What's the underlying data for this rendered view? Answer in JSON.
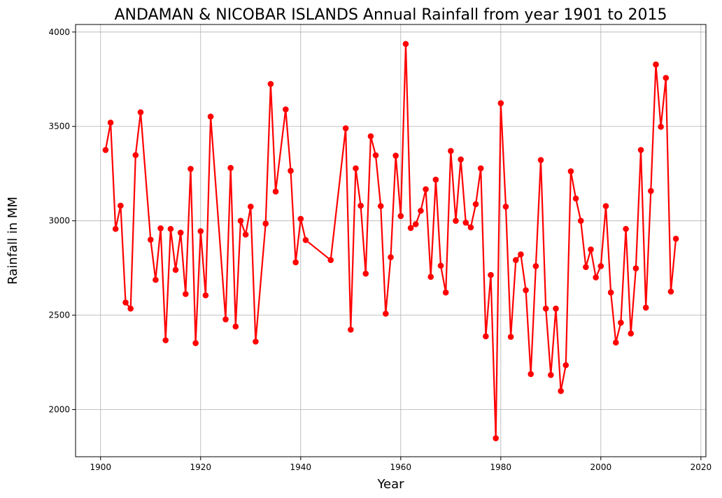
{
  "chart_data": {
    "type": "line",
    "title": "ANDAMAN & NICOBAR ISLANDS Annual Rainfall from year 1901 to 2015",
    "xlabel": "Year",
    "ylabel": "Rainfall in MM",
    "xlim": [
      1895,
      2021
    ],
    "ylim": [
      1750,
      4040
    ],
    "xticks": [
      "1900",
      "1920",
      "1940",
      "1960",
      "1980",
      "2000",
      "2020"
    ],
    "yticks": [
      "2000",
      "2500",
      "3000",
      "3500",
      "4000"
    ],
    "grid": true,
    "line_color": "#ff0000",
    "series": [
      {
        "x": [
          1901,
          1902,
          1903,
          1904,
          1905,
          1906,
          1907,
          1908,
          1910,
          1911,
          1912,
          1913,
          1914,
          1915,
          1916,
          1917,
          1918,
          1919,
          1920,
          1921,
          1922,
          1925,
          1926,
          1927,
          1928,
          1929,
          1930,
          1931,
          1933,
          1934,
          1935,
          1937,
          1938,
          1939,
          1940,
          1941,
          1946,
          1949,
          1950,
          1951,
          1952,
          1953,
          1954,
          1955,
          1956,
          1957,
          1958,
          1959,
          1960,
          1961,
          1962,
          1963,
          1964,
          1965,
          1966,
          1967,
          1968,
          1969,
          1970,
          1971,
          1972,
          1973,
          1974,
          1975,
          1976,
          1977,
          1978,
          1979,
          1980,
          1981,
          1982,
          1983,
          1984,
          1985,
          1986,
          1987,
          1988,
          1989,
          1990,
          1991,
          1992,
          1993,
          1994,
          1995,
          1996,
          1997,
          1998,
          1999,
          2000,
          2001,
          2002,
          2003,
          2004,
          2005,
          2006,
          2007,
          2008,
          2009,
          2010,
          2011,
          2012,
          2013,
          2014,
          2015
        ],
        "values": [
          3375,
          3520,
          2957,
          3080,
          2567,
          2535,
          3348,
          3575,
          2900,
          2687,
          2960,
          2367,
          2957,
          2740,
          2937,
          2612,
          3275,
          2352,
          2945,
          2605,
          3552,
          2478,
          3280,
          2440,
          3000,
          2927,
          3075,
          2360,
          2985,
          3725,
          3155,
          3590,
          3265,
          2780,
          3010,
          2898,
          2792,
          3490,
          2423,
          3278,
          3080,
          2720,
          3448,
          3347,
          3078,
          2508,
          2807,
          3345,
          3025,
          3937,
          2962,
          2982,
          3053,
          3167,
          2703,
          3218,
          2762,
          2620,
          3370,
          3000,
          3325,
          2990,
          2965,
          3088,
          3278,
          2388,
          2713,
          1848,
          3623,
          3075,
          2385,
          2792,
          2822,
          2632,
          2188,
          2760,
          3322,
          2535,
          2183,
          2535,
          2098,
          2235,
          3262,
          3118,
          3000,
          2755,
          2848,
          2700,
          2760,
          3078,
          2620,
          2355,
          2460,
          2957,
          2403,
          2748,
          3375,
          2540,
          3158,
          3828,
          3498,
          3757,
          2625,
          2905
        ]
      }
    ]
  }
}
